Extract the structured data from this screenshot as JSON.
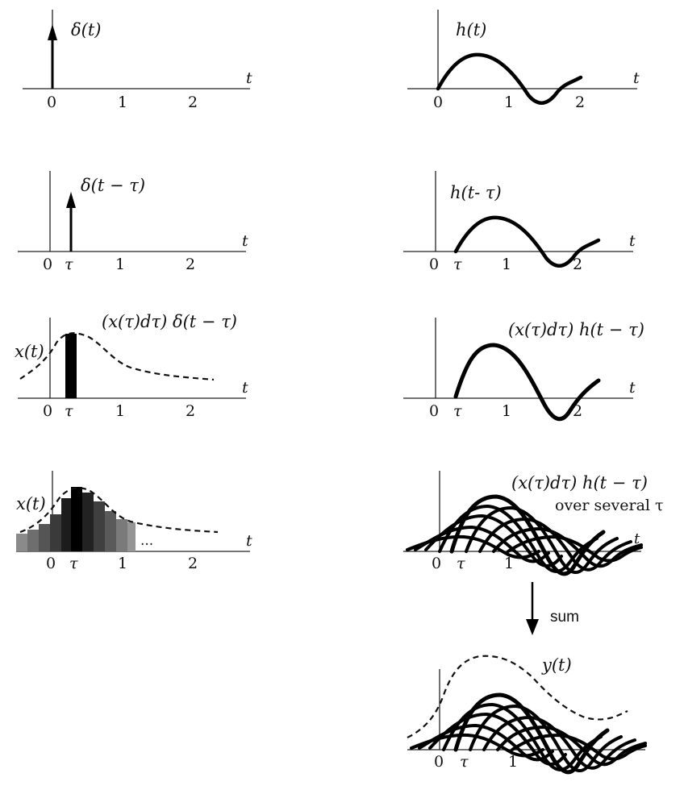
{
  "colors": {
    "ink": "#000000",
    "dark": "#222222",
    "mid": "#555555",
    "light": "#888888",
    "bar_light": "#8a8a8a"
  },
  "panel1": {
    "left": {
      "label": "δ(t)",
      "axis_var": "t",
      "ticks": [
        "0",
        "1",
        "2"
      ]
    },
    "right": {
      "label": "h(t)",
      "axis_var": "t",
      "ticks": [
        "0",
        "1",
        "2"
      ]
    }
  },
  "panel2": {
    "left": {
      "label": "δ(t − τ)",
      "axis_var": "t",
      "ticks": [
        "0",
        "τ",
        "1",
        "2"
      ]
    },
    "right": {
      "label": "h(t- τ)",
      "axis_var": "t",
      "ticks": [
        "0",
        "τ",
        "1",
        "2"
      ]
    }
  },
  "panel3": {
    "left": {
      "label": "(x(τ)dτ) δ(t − τ)",
      "signal_label": "x(t)",
      "axis_var": "t",
      "ticks": [
        "0",
        "τ",
        "1",
        "2"
      ]
    },
    "right": {
      "label": "(x(τ)dτ) h(t − τ)",
      "axis_var": "t",
      "ticks": [
        "0",
        "τ",
        "1",
        "2"
      ]
    }
  },
  "panel4": {
    "left": {
      "signal_label": "x(t)",
      "ellipsis": "...",
      "axis_var": "t",
      "ticks": [
        "0",
        "τ",
        "1",
        "2"
      ]
    },
    "right": {
      "label_line1": "(x(τ)dτ) h(t − τ)",
      "label_line2": "over several τ",
      "axis_var": "t",
      "ticks": [
        "0",
        "τ",
        "1"
      ]
    }
  },
  "sum_arrow": {
    "label": "sum"
  },
  "panel5": {
    "label": "y(t)",
    "ticks": [
      "0",
      "τ",
      "1"
    ]
  }
}
